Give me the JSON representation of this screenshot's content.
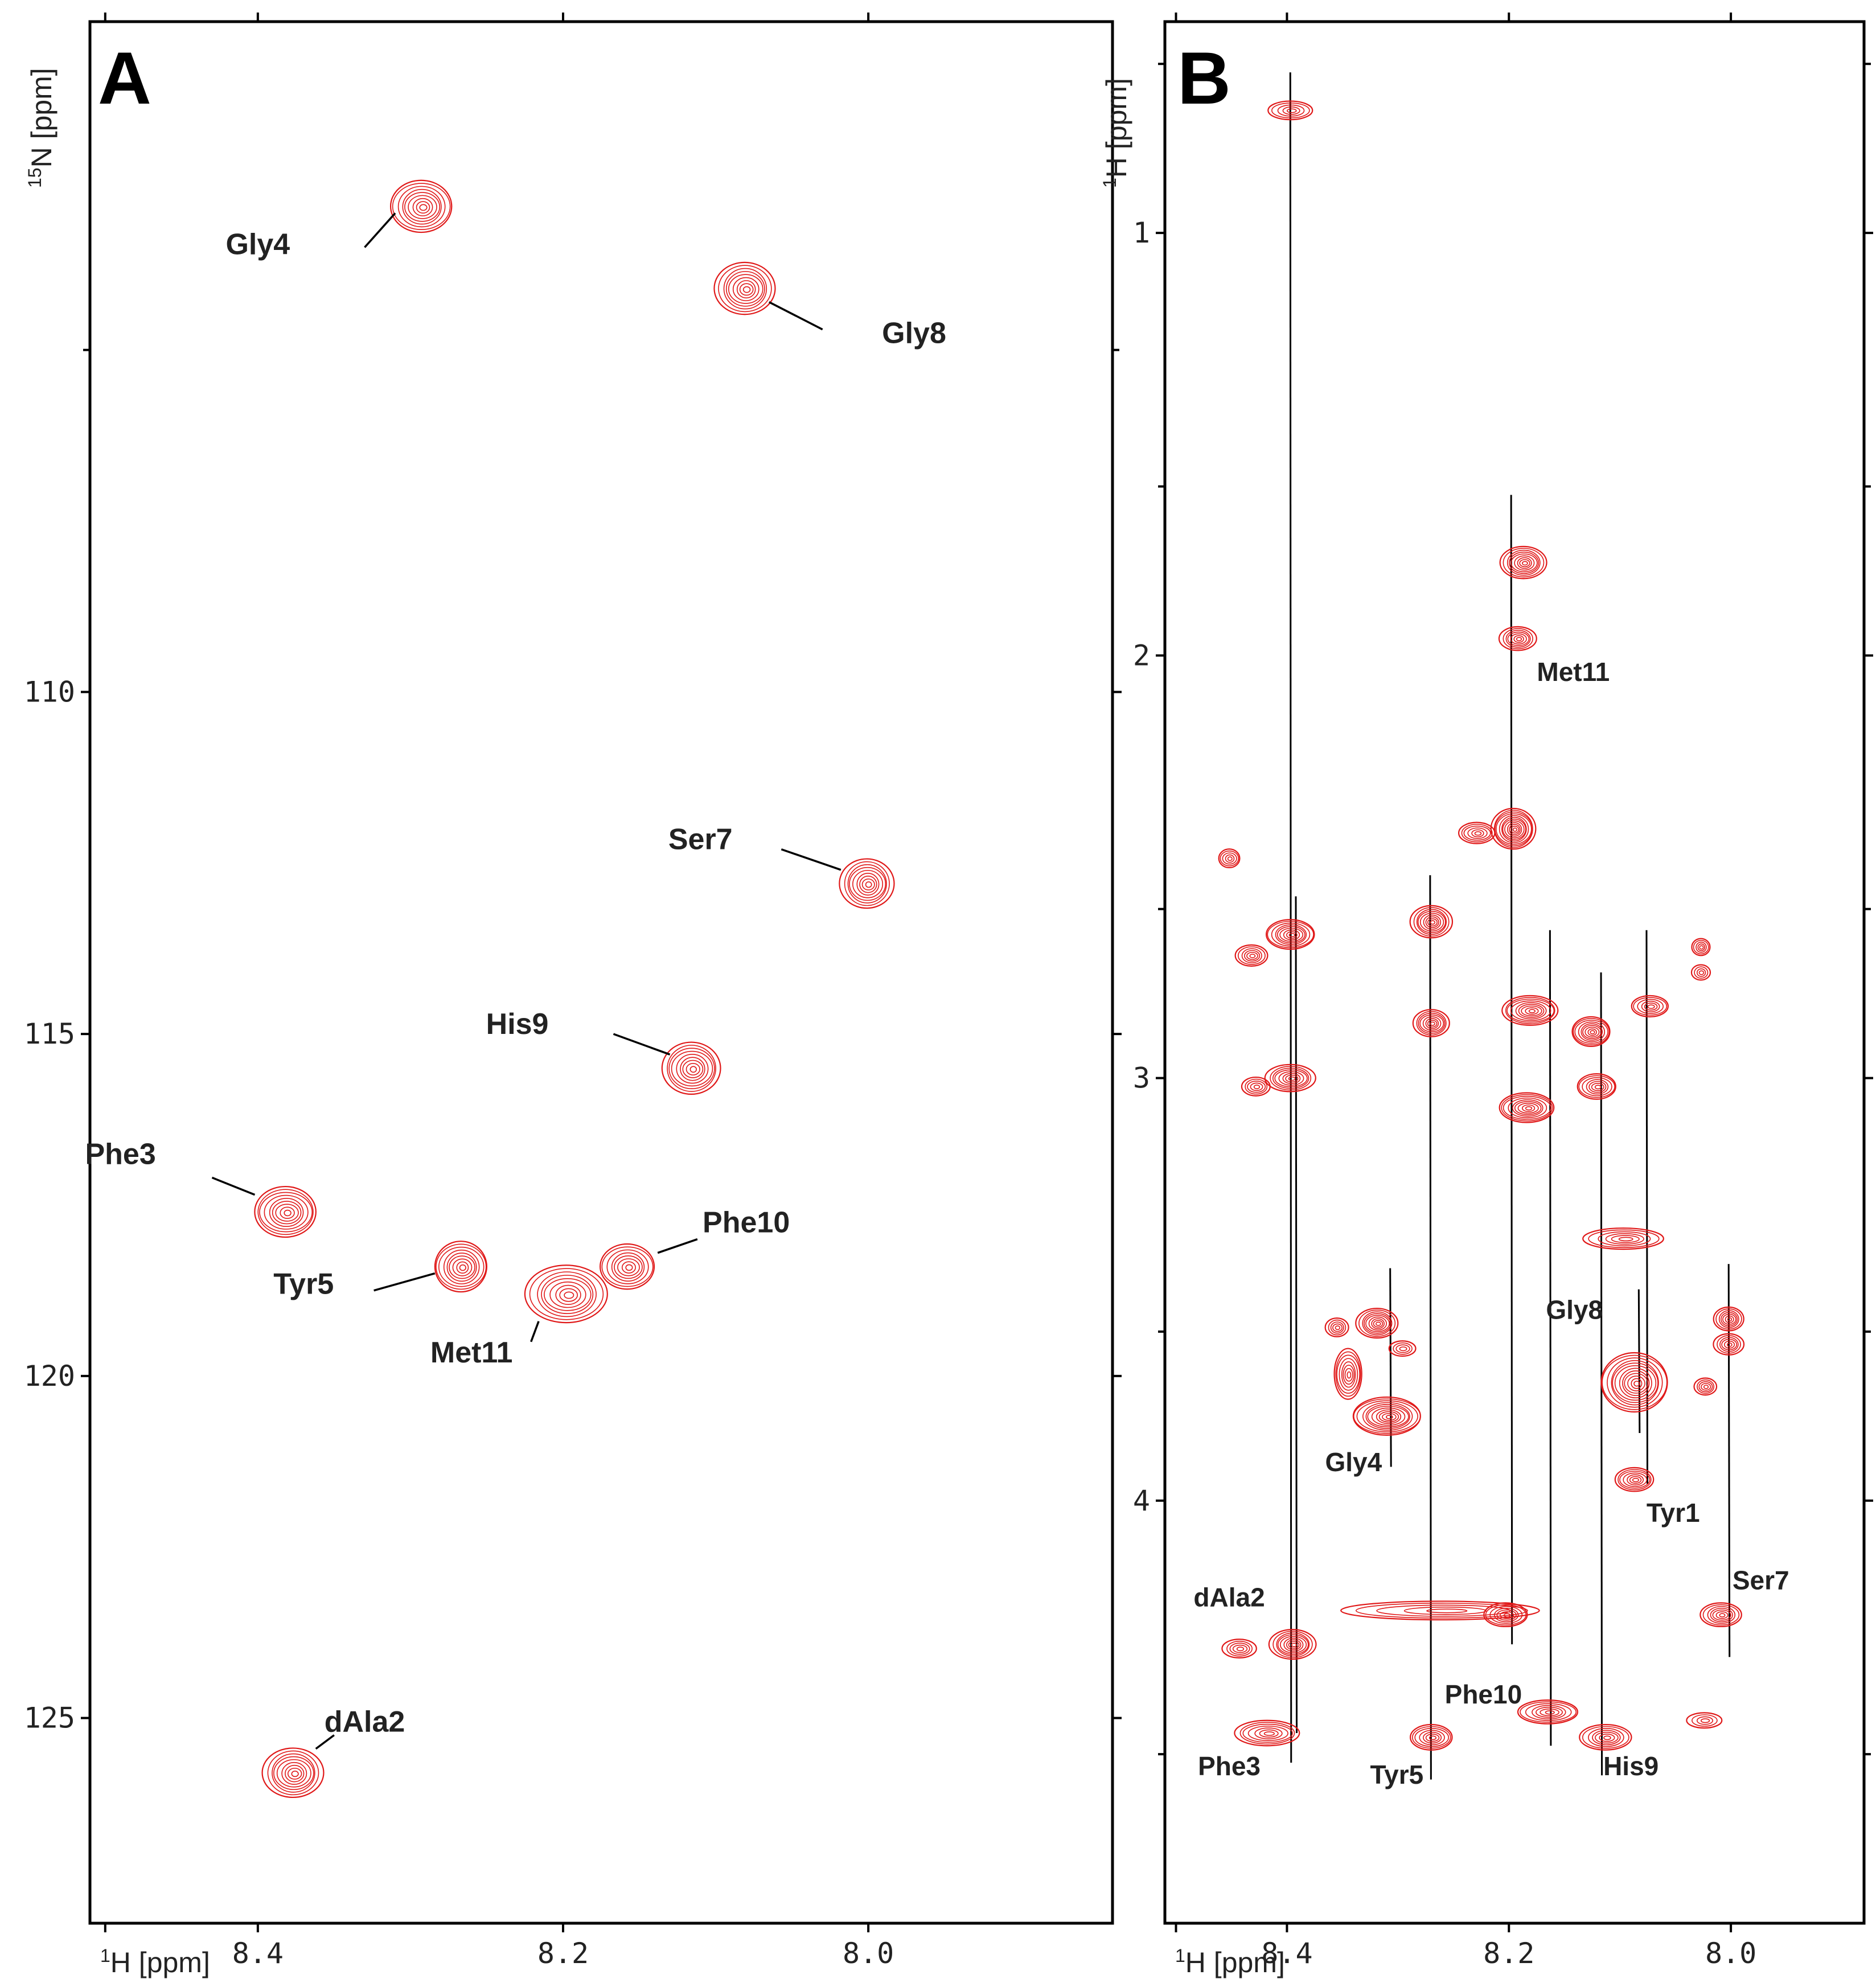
{
  "colors": {
    "contour": "#e01818",
    "axis": "#000000",
    "text": "#222222"
  },
  "chart_data": [
    {
      "panel": "A",
      "type": "scatter",
      "subtype": "2D NMR spectrum (1H-15N HSQC)",
      "xlabel_sup": "1",
      "xlabel": "H [ppm]",
      "ylabel_sup": "15",
      "ylabel": "N [ppm]",
      "xlim": [
        8.51,
        7.84
      ],
      "ylim": [
        100.2,
        128.0
      ],
      "x_ticks": [
        8.5,
        8.4,
        8.2,
        8.0
      ],
      "x_tick_labels": [
        "",
        "8.4",
        "8.2",
        "8.0"
      ],
      "y_ticks": [
        105,
        110,
        115,
        120,
        125
      ],
      "y_tick_labels": [
        "",
        "110",
        "115",
        "120",
        "125"
      ],
      "peaks": [
        {
          "label": "Gly4",
          "x": 8.293,
          "y": 102.9,
          "rx": 0.02,
          "ry": 0.38,
          "levels": 9
        },
        {
          "label": "Gly8",
          "x": 8.081,
          "y": 104.1,
          "rx": 0.019,
          "ry": 0.38,
          "levels": 9
        },
        {
          "label": "Ser7",
          "x": 8.001,
          "y": 112.8,
          "rx": 0.017,
          "ry": 0.36,
          "levels": 9
        },
        {
          "label": "His9",
          "x": 8.116,
          "y": 115.5,
          "rx": 0.019,
          "ry": 0.38,
          "levels": 9
        },
        {
          "label": "Phe3",
          "x": 8.382,
          "y": 117.6,
          "rx": 0.021,
          "ry": 0.37,
          "levels": 9
        },
        {
          "label": "Tyr5",
          "x": 8.267,
          "y": 118.4,
          "rx": 0.018,
          "ry": 0.37,
          "levels": 9
        },
        {
          "label": "Phe10",
          "x": 8.158,
          "y": 118.4,
          "rx": 0.018,
          "ry": 0.33,
          "levels": 8
        },
        {
          "label": "Met11",
          "x": 8.198,
          "y": 118.8,
          "rx": 0.026,
          "ry": 0.42,
          "levels": 9
        },
        {
          "label": "dAla2",
          "x": 8.377,
          "y": 125.8,
          "rx": 0.019,
          "ry": 0.36,
          "levels": 9
        }
      ],
      "annotations": [
        {
          "text": "Gly4",
          "x": 8.4,
          "y": 103.6,
          "anchor_x": 8.31,
          "anchor_y": 103.0,
          "tx": 8.33,
          "ty": 103.5
        },
        {
          "text": "Gly8",
          "x": 7.97,
          "y": 104.9,
          "anchor_x": 8.065,
          "anchor_y": 104.3,
          "tx": 8.03,
          "ty": 104.7
        },
        {
          "text": "Ser7",
          "x": 8.11,
          "y": 112.3,
          "anchor_x": 8.018,
          "anchor_y": 112.6,
          "tx": 8.057,
          "ty": 112.3
        },
        {
          "text": "His9",
          "x": 8.23,
          "y": 115.0,
          "anchor_x": 8.13,
          "anchor_y": 115.3,
          "tx": 8.167,
          "ty": 115.0
        },
        {
          "text": "Phe3",
          "x": 8.49,
          "y": 116.9,
          "anchor_x": 8.402,
          "anchor_y": 117.35,
          "tx": 8.43,
          "ty": 117.1
        },
        {
          "text": "Tyr5",
          "x": 8.37,
          "y": 118.8,
          "anchor_x": 8.284,
          "anchor_y": 118.5,
          "tx": 8.324,
          "ty": 118.75
        },
        {
          "text": "Phe10",
          "x": 8.08,
          "y": 117.9,
          "anchor_x": 8.138,
          "anchor_y": 118.2,
          "tx": 8.112,
          "ty": 118.0
        },
        {
          "text": "Met11",
          "x": 8.26,
          "y": 119.8,
          "anchor_x": 8.216,
          "anchor_y": 119.2,
          "tx": 8.221,
          "ty": 119.5
        },
        {
          "text": "dAla2",
          "x": 8.33,
          "y": 125.2,
          "anchor_x": 8.362,
          "anchor_y": 125.45,
          "tx": 8.35,
          "ty": 125.25
        }
      ],
      "letter": "A"
    },
    {
      "panel": "B",
      "type": "scatter",
      "subtype": "2D NMR spectrum (1H-1H TOCSY)",
      "xlabel_sup": "1",
      "xlabel": "H [ppm]",
      "ylabel_sup": "1",
      "ylabel": "H [ppm]",
      "xlim": [
        8.51,
        7.88
      ],
      "ylim": [
        0.5,
        5.0
      ],
      "x_ticks": [
        8.5,
        8.4,
        8.2,
        8.0
      ],
      "x_tick_labels": [
        "",
        "8.4",
        "8.2",
        "8.0"
      ],
      "y_ticks": [
        0.6,
        1.0,
        1.6,
        2.0,
        2.6,
        3.0,
        3.6,
        4.0,
        4.6
      ],
      "y_tick_labels": [
        "",
        "1",
        "",
        "2",
        "",
        "3",
        "",
        "4",
        ""
      ],
      "strips": [
        {
          "x": 8.397,
          "y_top": 0.62,
          "y_bot": 4.62
        },
        {
          "x": 8.392,
          "y_top": 2.57,
          "y_bot": 4.55
        },
        {
          "x": 8.307,
          "y_top": 3.45,
          "y_bot": 3.92
        },
        {
          "x": 8.271,
          "y_top": 2.52,
          "y_bot": 4.66
        },
        {
          "x": 8.198,
          "y_top": 1.62,
          "y_bot": 4.34
        },
        {
          "x": 8.163,
          "y_top": 2.65,
          "y_bot": 4.58
        },
        {
          "x": 8.117,
          "y_top": 2.75,
          "y_bot": 4.65
        },
        {
          "x": 8.083,
          "y_top": 3.5,
          "y_bot": 3.84
        },
        {
          "x": 8.076,
          "y_top": 2.65,
          "y_bot": 3.96
        },
        {
          "x": 8.002,
          "y_top": 3.44,
          "y_bot": 4.37
        }
      ],
      "peaks": [
        {
          "x": 8.397,
          "y": 0.71,
          "rx": 0.02,
          "ry": 0.022
        },
        {
          "x": 8.187,
          "y": 1.78,
          "rx": 0.02,
          "ry": 0.038
        },
        {
          "x": 8.192,
          "y": 1.96,
          "rx": 0.016,
          "ry": 0.028
        },
        {
          "x": 8.196,
          "y": 2.41,
          "rx": 0.02,
          "ry": 0.048
        },
        {
          "x": 8.229,
          "y": 2.42,
          "rx": 0.017,
          "ry": 0.025
        },
        {
          "x": 8.452,
          "y": 2.48,
          "rx": 0.01,
          "ry": 0.022
        },
        {
          "x": 8.397,
          "y": 2.66,
          "rx": 0.022,
          "ry": 0.035
        },
        {
          "x": 8.432,
          "y": 2.71,
          "rx": 0.014,
          "ry": 0.025
        },
        {
          "x": 8.27,
          "y": 2.63,
          "rx": 0.018,
          "ry": 0.038
        },
        {
          "x": 8.27,
          "y": 2.87,
          "rx": 0.016,
          "ry": 0.032
        },
        {
          "x": 8.181,
          "y": 2.84,
          "rx": 0.026,
          "ry": 0.035
        },
        {
          "x": 8.126,
          "y": 2.89,
          "rx": 0.018,
          "ry": 0.035
        },
        {
          "x": 8.073,
          "y": 2.83,
          "rx": 0.017,
          "ry": 0.025
        },
        {
          "x": 8.027,
          "y": 2.69,
          "rx": 0.008,
          "ry": 0.02
        },
        {
          "x": 8.027,
          "y": 2.75,
          "rx": 0.008,
          "ry": 0.018
        },
        {
          "x": 8.397,
          "y": 3.0,
          "rx": 0.022,
          "ry": 0.032
        },
        {
          "x": 8.428,
          "y": 3.02,
          "rx": 0.013,
          "ry": 0.022
        },
        {
          "x": 8.184,
          "y": 3.07,
          "rx": 0.026,
          "ry": 0.035
        },
        {
          "x": 8.121,
          "y": 3.02,
          "rx": 0.018,
          "ry": 0.03
        },
        {
          "x": 8.097,
          "y": 3.38,
          "rx": 0.036,
          "ry": 0.025
        },
        {
          "x": 8.319,
          "y": 3.58,
          "rx": 0.018,
          "ry": 0.035
        },
        {
          "x": 8.355,
          "y": 3.59,
          "rx": 0.01,
          "ry": 0.022
        },
        {
          "x": 8.296,
          "y": 3.64,
          "rx": 0.012,
          "ry": 0.018
        },
        {
          "x": 8.345,
          "y": 3.7,
          "rx": 0.013,
          "ry": 0.06
        },
        {
          "x": 8.31,
          "y": 3.8,
          "rx": 0.032,
          "ry": 0.045
        },
        {
          "x": 8.087,
          "y": 3.72,
          "rx": 0.03,
          "ry": 0.07
        },
        {
          "x": 8.002,
          "y": 3.57,
          "rx": 0.013,
          "ry": 0.028
        },
        {
          "x": 8.002,
          "y": 3.63,
          "rx": 0.013,
          "ry": 0.025
        },
        {
          "x": 8.023,
          "y": 3.73,
          "rx": 0.01,
          "ry": 0.02
        },
        {
          "x": 8.087,
          "y": 3.95,
          "rx": 0.018,
          "ry": 0.028
        },
        {
          "x": 8.262,
          "y": 4.26,
          "rx": 0.095,
          "ry": 0.022
        },
        {
          "x": 8.203,
          "y": 4.27,
          "rx": 0.02,
          "ry": 0.028
        },
        {
          "x": 8.009,
          "y": 4.27,
          "rx": 0.018,
          "ry": 0.028
        },
        {
          "x": 8.395,
          "y": 4.34,
          "rx": 0.02,
          "ry": 0.035
        },
        {
          "x": 8.443,
          "y": 4.35,
          "rx": 0.015,
          "ry": 0.022
        },
        {
          "x": 8.418,
          "y": 4.55,
          "rx": 0.03,
          "ry": 0.03
        },
        {
          "x": 8.27,
          "y": 4.56,
          "rx": 0.02,
          "ry": 0.03
        },
        {
          "x": 8.165,
          "y": 4.5,
          "rx": 0.028,
          "ry": 0.028
        },
        {
          "x": 8.113,
          "y": 4.56,
          "rx": 0.023,
          "ry": 0.03
        },
        {
          "x": 8.024,
          "y": 4.52,
          "rx": 0.015,
          "ry": 0.018
        }
      ],
      "annotations": [
        {
          "text": "Met11",
          "x": 8.142,
          "y": 2.06
        },
        {
          "text": "Gly8",
          "x": 8.141,
          "y": 3.57
        },
        {
          "text": "Gly4",
          "x": 8.34,
          "y": 3.93
        },
        {
          "text": "Tyr1",
          "x": 8.052,
          "y": 4.05
        },
        {
          "text": "Ser7",
          "x": 7.973,
          "y": 4.21
        },
        {
          "text": "dAla2",
          "x": 8.452,
          "y": 4.25
        },
        {
          "text": "Phe10",
          "x": 8.223,
          "y": 4.48
        },
        {
          "text": "Phe3",
          "x": 8.452,
          "y": 4.65
        },
        {
          "text": "Tyr5",
          "x": 8.301,
          "y": 4.67
        },
        {
          "text": "His9",
          "x": 8.09,
          "y": 4.65
        }
      ],
      "letter": "B"
    }
  ]
}
